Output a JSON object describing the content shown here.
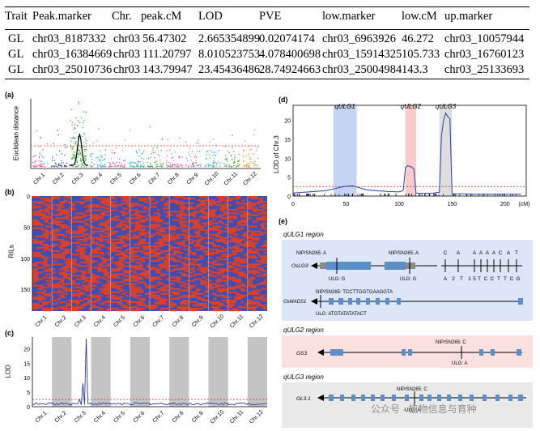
{
  "qtl_table": {
    "headers": [
      "Trait",
      "Peak.marker",
      "Chr.",
      "peak.cM",
      "LOD",
      "PVE",
      "low.marker",
      "low.cM",
      "up.marker"
    ],
    "rows": [
      [
        "GL",
        "chr03_8187332",
        "chr03",
        "56.47302",
        "2.665354899",
        "0.02074174",
        "chr03_6963926",
        "46.272",
        "chr03_10057944"
      ],
      [
        "GL",
        "chr03_16384669",
        "chr03",
        "111.20797",
        "8.010523753",
        "4.078400698",
        "chr03_15914325",
        "105.733",
        "chr03_16760123"
      ],
      [
        "GL",
        "chr03_25010736",
        "chr03",
        "143.79947",
        "23.45436486",
        "28.74924663",
        "chr03_25004984",
        "143.3",
        "chr03_25133693"
      ]
    ]
  },
  "panel_a": {
    "label": "(a)",
    "ylabel": "Euclidean distance",
    "chromosomes": [
      "Chr.1",
      "Chr.2",
      "Chr.3",
      "Chr.4",
      "Chr.5",
      "Chr.6",
      "Chr.7",
      "Chr.8",
      "Chr.9",
      "Chr.10",
      "Chr.11",
      "Chr.12"
    ],
    "colors": [
      "#e6579f",
      "#2f4fb5",
      "#3aaa35",
      "#2aa7d8",
      "#e6579f",
      "#2aa7d8",
      "#3aaa35",
      "#e6579f",
      "#a56cc1",
      "#2aa7d8",
      "#3aaa35",
      "#e8961a"
    ]
  },
  "panel_b": {
    "label": "(b)",
    "ylabel": "RILs",
    "yticks": [
      "0",
      "50",
      "100",
      "150"
    ],
    "chromosomes": [
      "Chr.1",
      "Chr.2",
      "Chr.3",
      "Chr.4",
      "Chr.5",
      "Chr.6",
      "Chr.7",
      "Chr.8",
      "Chr.9",
      "Chr.10",
      "Chr.11",
      "Chr.12"
    ],
    "colors": {
      "a": "#d7402a",
      "b": "#3f4db2"
    }
  },
  "panel_c": {
    "label": "(c)",
    "ylabel": "LOD",
    "yticks": [
      "0",
      "5",
      "10",
      "15",
      "20"
    ],
    "threshold": 2.5,
    "peak": 23.5,
    "chromosomes": [
      "Chr.1",
      "Chr.2",
      "Chr.3",
      "Chr.4",
      "Chr.5",
      "Chr.6",
      "Chr.7",
      "Chr.8",
      "Chr.9",
      "Chr.10",
      "Chr.11",
      "Chr.12"
    ],
    "chart_data": {
      "type": "line",
      "title": "",
      "xlabel": "",
      "ylabel": "LOD",
      "ylim": [
        0,
        24
      ],
      "series": [
        {
          "name": "LOD",
          "values": [
            1.2,
            1.0,
            1.5,
            2.5,
            8.0,
            23.5,
            1.1,
            1.0,
            1.0,
            0.9,
            1.0,
            0.9,
            0.8,
            1.0,
            0.9,
            0.8,
            1.0,
            0.9,
            0.8,
            0.9,
            1.0,
            0.8,
            0.9,
            0.8
          ]
        }
      ]
    }
  },
  "panel_d": {
    "label": "(d)",
    "ylabel": "LOD of Chr.3",
    "xunit": "(cM)",
    "xticks": [
      "0",
      "50",
      "100",
      "150",
      "200"
    ],
    "yticks": [
      "0",
      "5",
      "10",
      "15",
      "20"
    ],
    "regions": [
      {
        "name": "qULG1",
        "color": "#9db8ea"
      },
      {
        "name": "qULG2",
        "color": "#f4a6a6"
      },
      {
        "name": "qULG3",
        "color": "#c8c8c8"
      }
    ],
    "chart_data": {
      "type": "line",
      "title": "",
      "xlabel": "(cM)",
      "ylabel": "LOD of Chr.3",
      "xlim": [
        0,
        220
      ],
      "ylim": [
        0,
        24
      ],
      "threshold": 2.5,
      "x": [
        0,
        10,
        20,
        30,
        40,
        46,
        50,
        56,
        60,
        70,
        80,
        90,
        100,
        104,
        106,
        108,
        111,
        114,
        116,
        120,
        130,
        138,
        140,
        142,
        144,
        146,
        148,
        150,
        160,
        170,
        180,
        190,
        200,
        210,
        215
      ],
      "y": [
        0.8,
        1.0,
        1.2,
        1.4,
        2.0,
        2.4,
        2.6,
        2.7,
        2.4,
        1.6,
        1.4,
        1.2,
        1.1,
        1.5,
        7.5,
        8.0,
        7.8,
        7.2,
        0.8,
        0.7,
        0.7,
        1.0,
        16.0,
        20.0,
        22.0,
        21.0,
        20.5,
        0.6,
        0.6,
        0.5,
        0.5,
        0.5,
        0.5,
        0.5,
        0.5
      ]
    }
  },
  "panel_e": {
    "label": "(e)",
    "sections": [
      {
        "title": "qULG1 region",
        "color": "#dce6f7",
        "genes": [
          {
            "name": "OsLG3",
            "snp_labels": [
              "NIP/SN265: A",
              "NIP/SN265: A"
            ],
            "ulg_labels": [
              "ULG: G",
              "ULG: G"
            ],
            "seq_top": [
              "C",
              "A",
              "A",
              "A",
              "A",
              "A",
              "C",
              "A",
              "T"
            ],
            "seq_bottom": [
              "A",
              "2",
              "T",
              "1",
              "5",
              "T",
              "C",
              "C",
              "T",
              "T",
              "C",
              "G"
            ]
          },
          {
            "name": "OsMADS1",
            "nip": "NIP/SN265: TCCTTGGTGAAGGTA",
            "ulg": "ULG: ATGTATATATACT"
          }
        ]
      },
      {
        "title": "qULG2 region",
        "color": "#fbe0e0",
        "genes": [
          {
            "name": "GS3",
            "nip": "NIP/SN265: C",
            "ulg": "ULG: A"
          }
        ]
      },
      {
        "title": "qULG3 region",
        "color": "#e9e9e9",
        "genes": [
          {
            "name": "GL3.1",
            "nip": "NIP/SN265: C",
            "ulg": "ULG: A"
          }
        ]
      }
    ]
  },
  "watermark": "公众号 · 植物信息与育种"
}
